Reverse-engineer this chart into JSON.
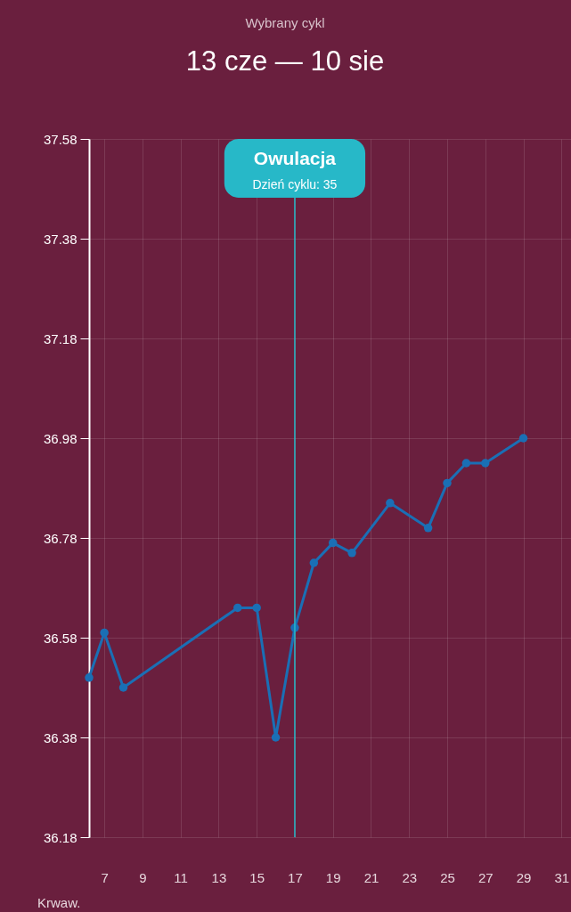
{
  "chart_data": {
    "type": "line",
    "subtitle": "Wybrany cykl",
    "title": "13 cze — 10 sie",
    "x": [
      6.2,
      7,
      8,
      14,
      15,
      16,
      17,
      18,
      19,
      20,
      22,
      24,
      25,
      26,
      27,
      29
    ],
    "series": [
      {
        "color": "#1a6fb5",
        "values": [
          36.5,
          36.59,
          36.48,
          36.64,
          36.64,
          36.38,
          36.6,
          36.73,
          36.77,
          36.75,
          36.85,
          36.8,
          36.89,
          36.93,
          36.93,
          36.98
        ]
      }
    ],
    "xlim": [
      6.2,
      31.5
    ],
    "xticks": [
      7,
      9,
      11,
      13,
      15,
      17,
      19,
      21,
      23,
      25,
      27,
      29,
      31
    ],
    "ylim": [
      36.18,
      37.58
    ],
    "yticks": [
      36.18,
      36.38,
      36.58,
      36.78,
      36.98,
      37.18,
      37.38,
      37.58
    ],
    "ref_lines": [
      {
        "axis": "x",
        "value": 17,
        "label": "Owulacja",
        "color": "#27b8c8"
      }
    ],
    "annotations": [
      "Dzień cyklu: 35",
      "Krwaw."
    ],
    "marker": "circle",
    "grid": true
  }
}
